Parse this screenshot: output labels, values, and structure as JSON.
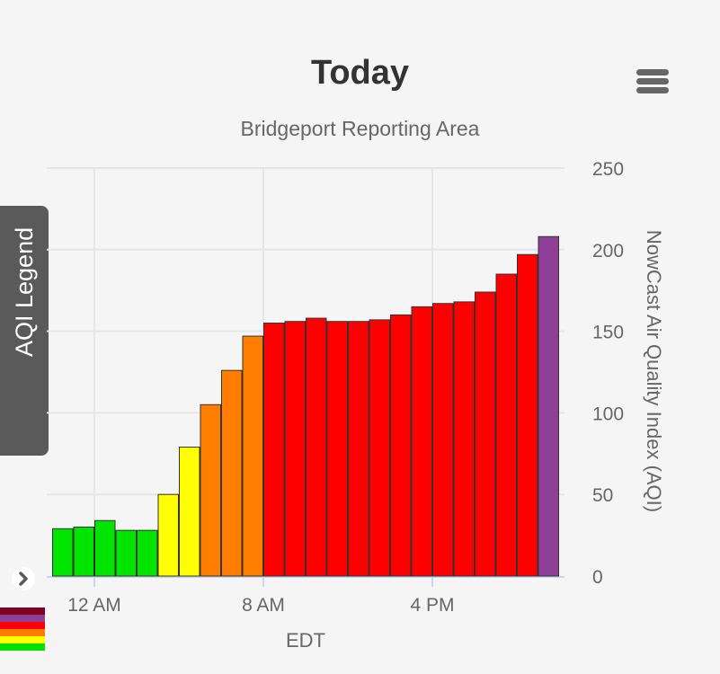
{
  "header": {
    "title": "Today",
    "subtitle": "Bridgeport Reporting Area"
  },
  "menu": {
    "icon": "hamburger-menu-icon"
  },
  "legend_tab": {
    "label": "AQI Legend",
    "icon": "chevron-circle-icon",
    "swatches": [
      "#7e0023",
      "#8f3f97",
      "#ff0000",
      "#ff7e00",
      "#ffff00",
      "#00e400"
    ]
  },
  "chart_data": {
    "type": "bar",
    "title": "Today",
    "subtitle": "Bridgeport Reporting Area",
    "xlabel": "EDT",
    "ylabel": "NowCast Air Quality Index (AQI)",
    "ylim": [
      0,
      250
    ],
    "yticks": [
      0,
      50,
      100,
      150,
      200,
      250
    ],
    "xtick_labels": [
      "12 AM",
      "8 AM",
      "4 PM"
    ],
    "xtick_positions_hour": [
      0,
      8,
      16
    ],
    "x_start_hour": -2,
    "y_axis_side": "right",
    "grid": true,
    "values": [
      29,
      30,
      34,
      28,
      28,
      50,
      79,
      105,
      126,
      147,
      155,
      156,
      158,
      156,
      156,
      157,
      160,
      165,
      167,
      168,
      174,
      185,
      197,
      208
    ],
    "colors": [
      "#00e400",
      "#00e400",
      "#00e400",
      "#00e400",
      "#00e400",
      "#ffff00",
      "#ffff00",
      "#ff7e00",
      "#ff7e00",
      "#ff7e00",
      "#ff0000",
      "#ff0000",
      "#ff0000",
      "#ff0000",
      "#ff0000",
      "#ff0000",
      "#ff0000",
      "#ff0000",
      "#ff0000",
      "#ff0000",
      "#ff0000",
      "#ff0000",
      "#ff0000",
      "#8f3f97"
    ]
  }
}
